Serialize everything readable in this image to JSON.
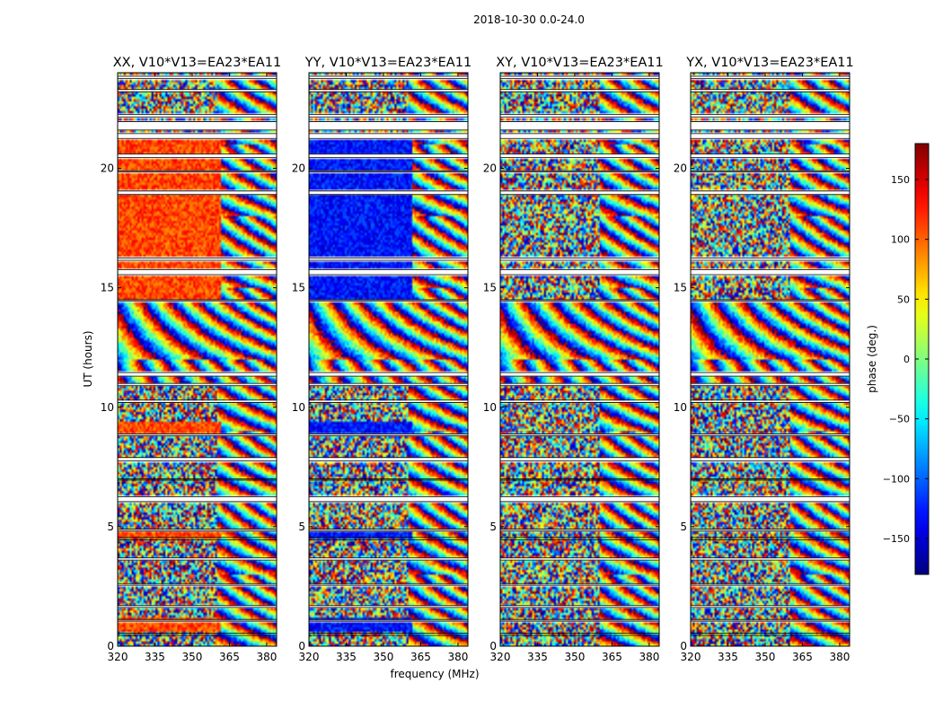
{
  "suptitle": "2018-10-30 0.0-24.0",
  "chart_data": {
    "type": "heatmap",
    "description_units": "phase in degrees vs frequency (MHz) and UT (hours)",
    "xlabel": "frequency (MHz)",
    "ylabel": "UT (hours)",
    "xlim": [
      320,
      384
    ],
    "ylim": [
      0,
      24
    ],
    "x_ticks": [
      320,
      335,
      350,
      365,
      380
    ],
    "y_ticks": [
      0,
      5,
      10,
      15,
      20
    ],
    "panels": [
      {
        "title": "XX, V10*V13=EA23*EA11",
        "base_phase": 110
      },
      {
        "title": "YY, V10*V13=EA23*EA11",
        "base_phase": -130
      },
      {
        "title": "XY, V10*V13=EA23*EA11",
        "base_phase": null
      },
      {
        "title": "YX, V10*V13=EA23*EA11",
        "base_phase": null
      }
    ],
    "colorbar": {
      "label": "phase (deg.)",
      "range": [
        -180,
        180
      ],
      "ticks": [
        -150,
        -100,
        -50,
        0,
        50,
        100,
        150
      ],
      "tick_labels": [
        "−150",
        "−100",
        "−50",
        "0",
        "50",
        "100",
        "150"
      ],
      "colormap": "jet"
    },
    "gaps_hours": [
      [
        0.45,
        0.55
      ],
      [
        1.05,
        1.12
      ],
      [
        1.62,
        1.7
      ],
      [
        2.55,
        2.62
      ],
      [
        3.6,
        3.7
      ],
      [
        4.45,
        4.55
      ],
      [
        4.82,
        4.9
      ],
      [
        6.05,
        6.25
      ],
      [
        6.95,
        7.0
      ],
      [
        7.75,
        7.9
      ],
      [
        8.8,
        8.88
      ],
      [
        10.2,
        10.3
      ],
      [
        10.9,
        11.0
      ],
      [
        11.3,
        11.45
      ],
      [
        14.45,
        14.5
      ],
      [
        15.55,
        15.75
      ],
      [
        16.15,
        16.25
      ],
      [
        18.9,
        19.05
      ],
      [
        19.85,
        19.9
      ],
      [
        20.45,
        20.6
      ],
      [
        21.25,
        21.45
      ],
      [
        21.6,
        21.95
      ],
      [
        22.15,
        22.25
      ],
      [
        23.2,
        23.3
      ],
      [
        23.75,
        23.85
      ]
    ]
  }
}
